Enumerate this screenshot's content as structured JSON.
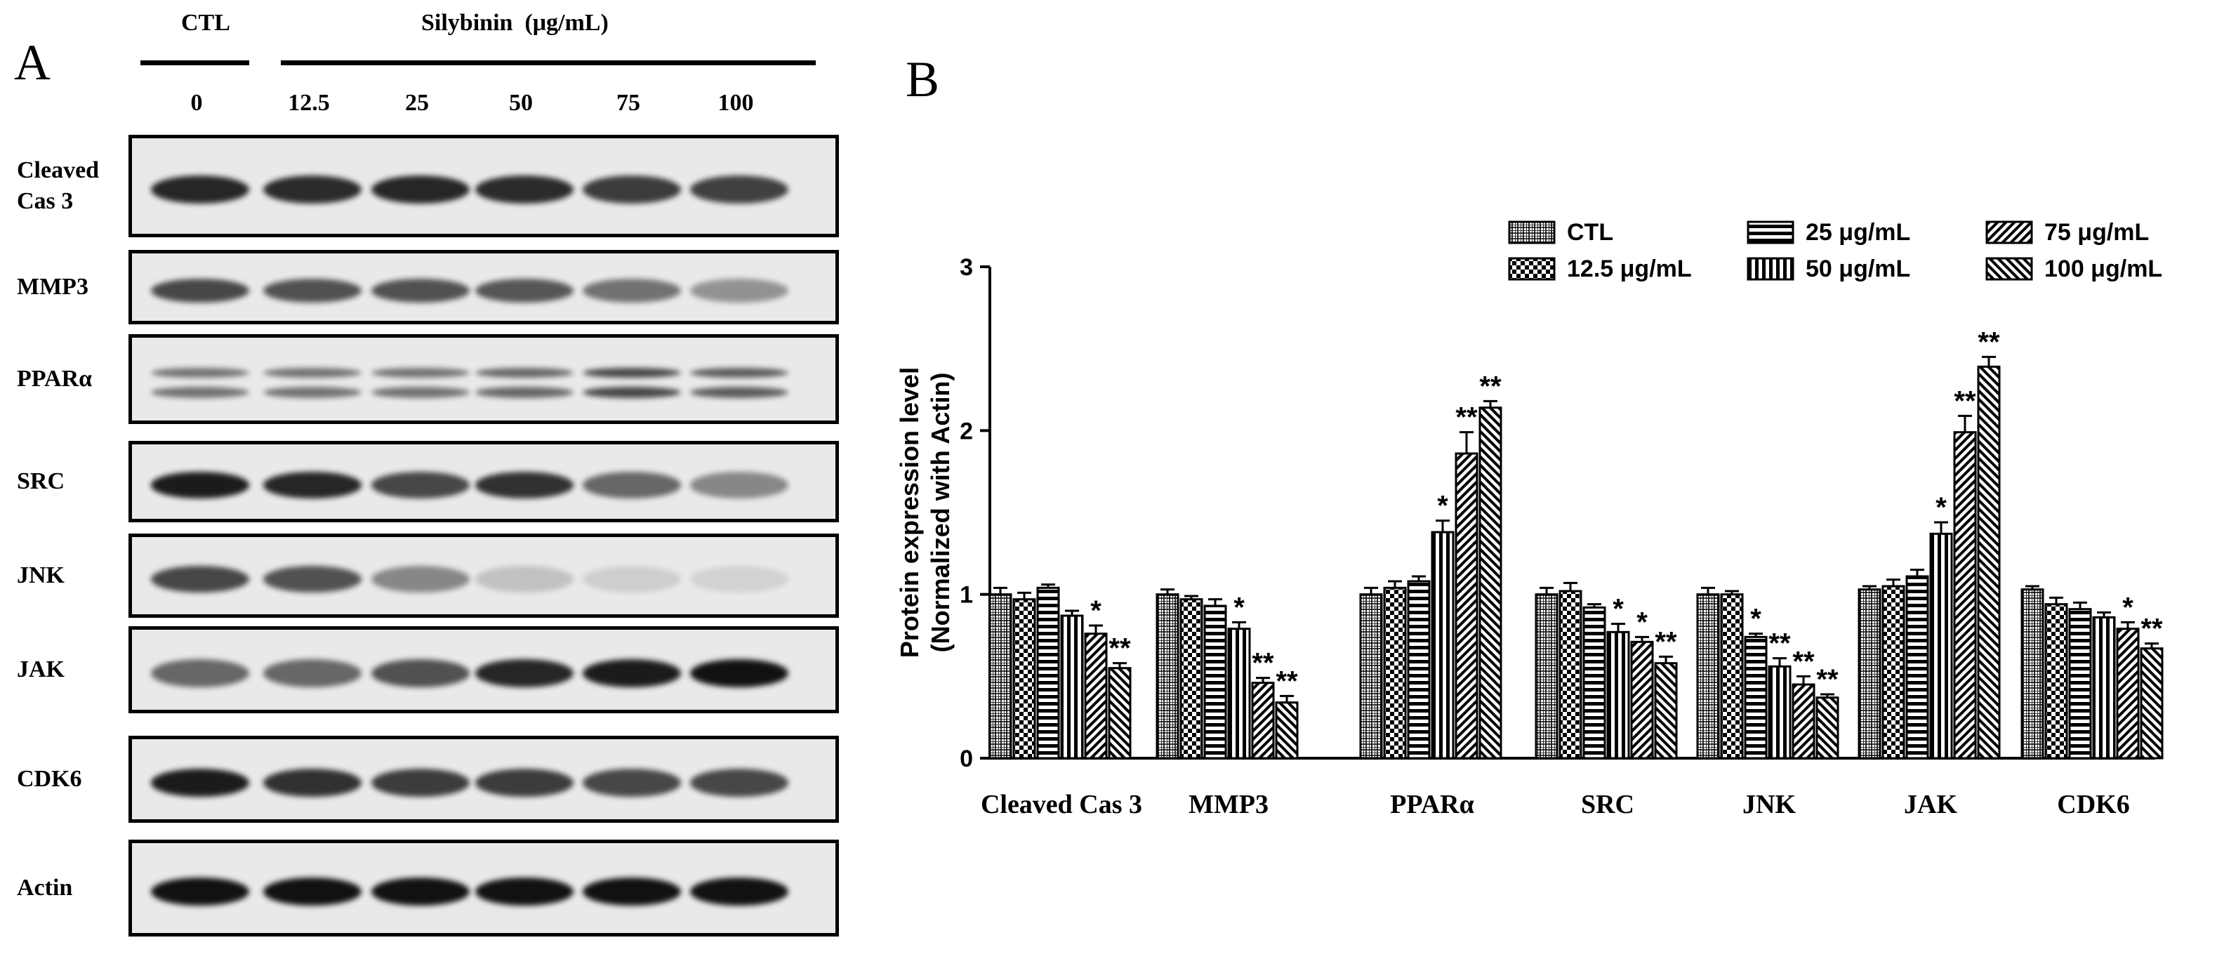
{
  "panel_a": {
    "letter": "A",
    "ctl_label": "CTL",
    "treatment_label": "Silybinin",
    "unit_label": "(μg/mL)",
    "doses": [
      "0",
      "12.5",
      "25",
      "50",
      "75",
      "100"
    ],
    "blots": [
      {
        "label": "Cleaved\nCas 3",
        "intensities": [
          0.9,
          0.88,
          0.9,
          0.88,
          0.8,
          0.78
        ]
      },
      {
        "label": "MMP3",
        "intensities": [
          0.75,
          0.7,
          0.7,
          0.68,
          0.55,
          0.4
        ]
      },
      {
        "label": "PPARα",
        "intensities": [
          0.55,
          0.55,
          0.55,
          0.6,
          0.75,
          0.65
        ]
      },
      {
        "label": "SRC",
        "intensities": [
          0.95,
          0.9,
          0.75,
          0.85,
          0.6,
          0.45
        ]
      },
      {
        "label": "JNK",
        "intensities": [
          0.75,
          0.7,
          0.45,
          0.18,
          0.12,
          0.1
        ]
      },
      {
        "label": "JAK",
        "intensities": [
          0.6,
          0.6,
          0.7,
          0.9,
          0.95,
          1.0
        ]
      },
      {
        "label": "CDK6",
        "intensities": [
          0.95,
          0.85,
          0.8,
          0.8,
          0.75,
          0.75
        ]
      },
      {
        "label": "Actin",
        "intensities": [
          1.0,
          1.0,
          1.0,
          1.0,
          1.0,
          1.0
        ]
      }
    ]
  },
  "chart_data": {
    "type": "bar",
    "panel_letter": "B",
    "ylabel_line1": "Protein expression level",
    "ylabel_line2": "(Normalized with Actin)",
    "ylim": [
      0,
      3
    ],
    "yticks": [
      "0",
      "1",
      "2",
      "3"
    ],
    "categories": [
      "Cleaved Cas 3",
      "MMP3",
      "PPARα",
      "SRC",
      "JNK",
      "JAK",
      "CDK6"
    ],
    "legend_position": "top-right",
    "series": [
      {
        "name": "CTL",
        "pattern": "grid",
        "values": [
          1.0,
          1.0,
          1.0,
          1.0,
          1.0,
          1.03,
          1.03
        ],
        "errors": [
          0.04,
          0.03,
          0.04,
          0.04,
          0.04,
          0.02,
          0.02
        ],
        "sig": [
          "",
          "",
          "",
          "",
          "",
          "",
          ""
        ]
      },
      {
        "name": "12.5 μg/mL",
        "pattern": "checker",
        "values": [
          0.97,
          0.97,
          1.04,
          1.02,
          1.0,
          1.05,
          0.94
        ],
        "errors": [
          0.04,
          0.02,
          0.04,
          0.05,
          0.02,
          0.04,
          0.04
        ],
        "sig": [
          "",
          "",
          "",
          "",
          "",
          "",
          ""
        ]
      },
      {
        "name": "25 μg/mL",
        "pattern": "hlines",
        "values": [
          1.04,
          0.93,
          1.08,
          0.92,
          0.74,
          1.11,
          0.91
        ],
        "errors": [
          0.02,
          0.04,
          0.03,
          0.02,
          0.02,
          0.04,
          0.04
        ],
        "sig": [
          "",
          "",
          "",
          "",
          "*",
          "",
          ""
        ]
      },
      {
        "name": "50  μg/mL",
        "pattern": "vlines",
        "values": [
          0.87,
          0.79,
          1.38,
          0.77,
          0.56,
          1.37,
          0.86
        ],
        "errors": [
          0.03,
          0.04,
          0.07,
          0.05,
          0.05,
          0.07,
          0.03
        ],
        "sig": [
          "",
          "*",
          "*",
          "*",
          "**",
          "*",
          ""
        ]
      },
      {
        "name": "75 μg/mL",
        "pattern": "diag",
        "values": [
          0.76,
          0.46,
          1.86,
          0.71,
          0.45,
          1.99,
          0.79
        ],
        "errors": [
          0.05,
          0.03,
          0.13,
          0.03,
          0.05,
          0.1,
          0.04
        ],
        "sig": [
          "*",
          "**",
          "**",
          "*",
          "**",
          "**",
          "*"
        ]
      },
      {
        "name": "100 μg/mL",
        "pattern": "antidiag",
        "values": [
          0.55,
          0.34,
          2.14,
          0.58,
          0.37,
          2.39,
          0.67
        ],
        "errors": [
          0.03,
          0.04,
          0.04,
          0.04,
          0.02,
          0.06,
          0.03
        ],
        "sig": [
          "**",
          "**",
          "**",
          "**",
          "**",
          "**",
          "**"
        ]
      }
    ]
  }
}
